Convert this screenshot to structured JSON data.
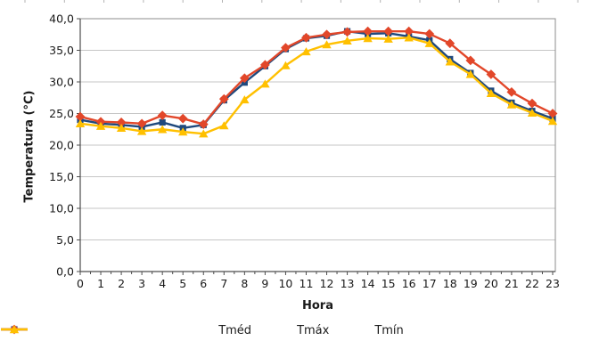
{
  "chart_data": {
    "type": "line",
    "title": "",
    "xlabel": "Hora",
    "ylabel": "Temperatura (°C)",
    "ylim": [
      0,
      40
    ],
    "ytick_step": 5,
    "grid": "horizontal",
    "legend_position": "bottom",
    "grid_color": "#c6c6c6",
    "axis_color": "#4d4d4d",
    "border_color": "#8c8c8c",
    "text_color": "#1a1a1a",
    "x": [
      0,
      1,
      2,
      3,
      4,
      5,
      6,
      7,
      8,
      9,
      10,
      11,
      12,
      13,
      14,
      15,
      16,
      17,
      18,
      19,
      20,
      21,
      22,
      23
    ],
    "xtick_labels": [
      "0",
      "1",
      "2",
      "3",
      "4",
      "5",
      "6",
      "7",
      "8",
      "9",
      "10",
      "11",
      "12",
      "13",
      "14",
      "15",
      "16",
      "17",
      "18",
      "19",
      "20",
      "21",
      "22",
      "23"
    ],
    "ytick_labels": [
      "0,0",
      "5,0",
      "10,0",
      "15,0",
      "20,0",
      "25,0",
      "30,0",
      "35,0",
      "40,0"
    ],
    "series": [
      {
        "name": "Tméd",
        "color": "#1F497D",
        "marker": "square",
        "values": [
          24.0,
          23.4,
          23.2,
          22.9,
          23.6,
          22.7,
          23.2,
          27.1,
          29.9,
          32.5,
          35.2,
          36.9,
          37.3,
          38.0,
          37.6,
          37.7,
          37.2,
          36.6,
          33.6,
          31.4,
          28.6,
          26.7,
          25.4,
          24.2
        ]
      },
      {
        "name": "Tmáx",
        "color": "#E2472A",
        "marker": "diamond",
        "values": [
          24.5,
          23.7,
          23.6,
          23.4,
          24.7,
          24.2,
          23.3,
          27.3,
          30.6,
          32.7,
          35.4,
          37.0,
          37.5,
          37.9,
          38.0,
          38.0,
          38.0,
          37.6,
          36.1,
          33.4,
          31.2,
          28.4,
          26.6,
          25.0
        ]
      },
      {
        "name": "Tmín",
        "color": "#FFC000",
        "marker": "triangle",
        "values": [
          23.4,
          23.0,
          22.7,
          22.2,
          22.5,
          22.1,
          21.8,
          23.1,
          27.2,
          29.7,
          32.6,
          34.8,
          35.9,
          36.5,
          36.9,
          36.8,
          37.0,
          36.1,
          33.2,
          31.2,
          28.2,
          26.4,
          25.1,
          23.8
        ]
      }
    ]
  }
}
